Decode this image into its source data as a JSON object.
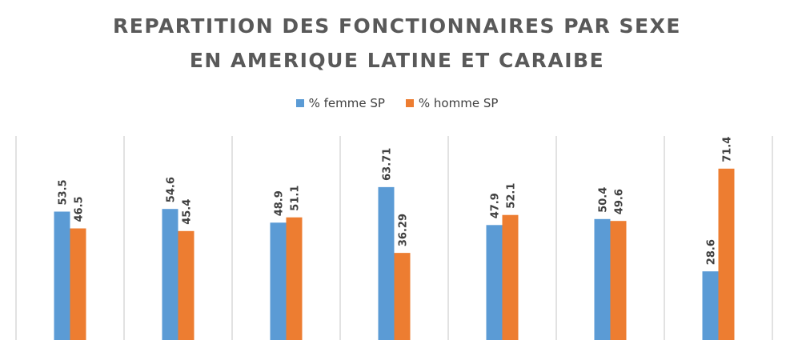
{
  "colors": {
    "femme": "#5b9bd5",
    "homme": "#ed7d31",
    "grid": "#d9d9d9",
    "text": "#404040"
  },
  "chart_data": {
    "type": "bar",
    "title": "REPARTITION DES FONCTIONNAIRES PAR SEXE",
    "subtitle": "EN AMERIQUE LATINE ET CARAIBE",
    "legend": {
      "position": "top"
    },
    "categories": [
      "",
      "",
      "",
      "",
      "",
      "",
      ""
    ],
    "series": [
      {
        "name": "% femme SP",
        "values": [
          53.5,
          54.6,
          48.9,
          63.71,
          47.9,
          50.4,
          28.6
        ],
        "labels": [
          "53.5",
          "54.6",
          "48.9",
          "63.71",
          "47.9",
          "50.4",
          "28.6"
        ]
      },
      {
        "name": "% homme SP",
        "values": [
          46.5,
          45.4,
          51.1,
          36.29,
          52.1,
          49.6,
          71.4
        ],
        "labels": [
          "46.5",
          "45.4",
          "51.1",
          "36.29",
          "52.1",
          "49.6",
          "71.4"
        ]
      }
    ],
    "ylim": [
      0,
      90
    ],
    "grid": "vertical category separators"
  }
}
